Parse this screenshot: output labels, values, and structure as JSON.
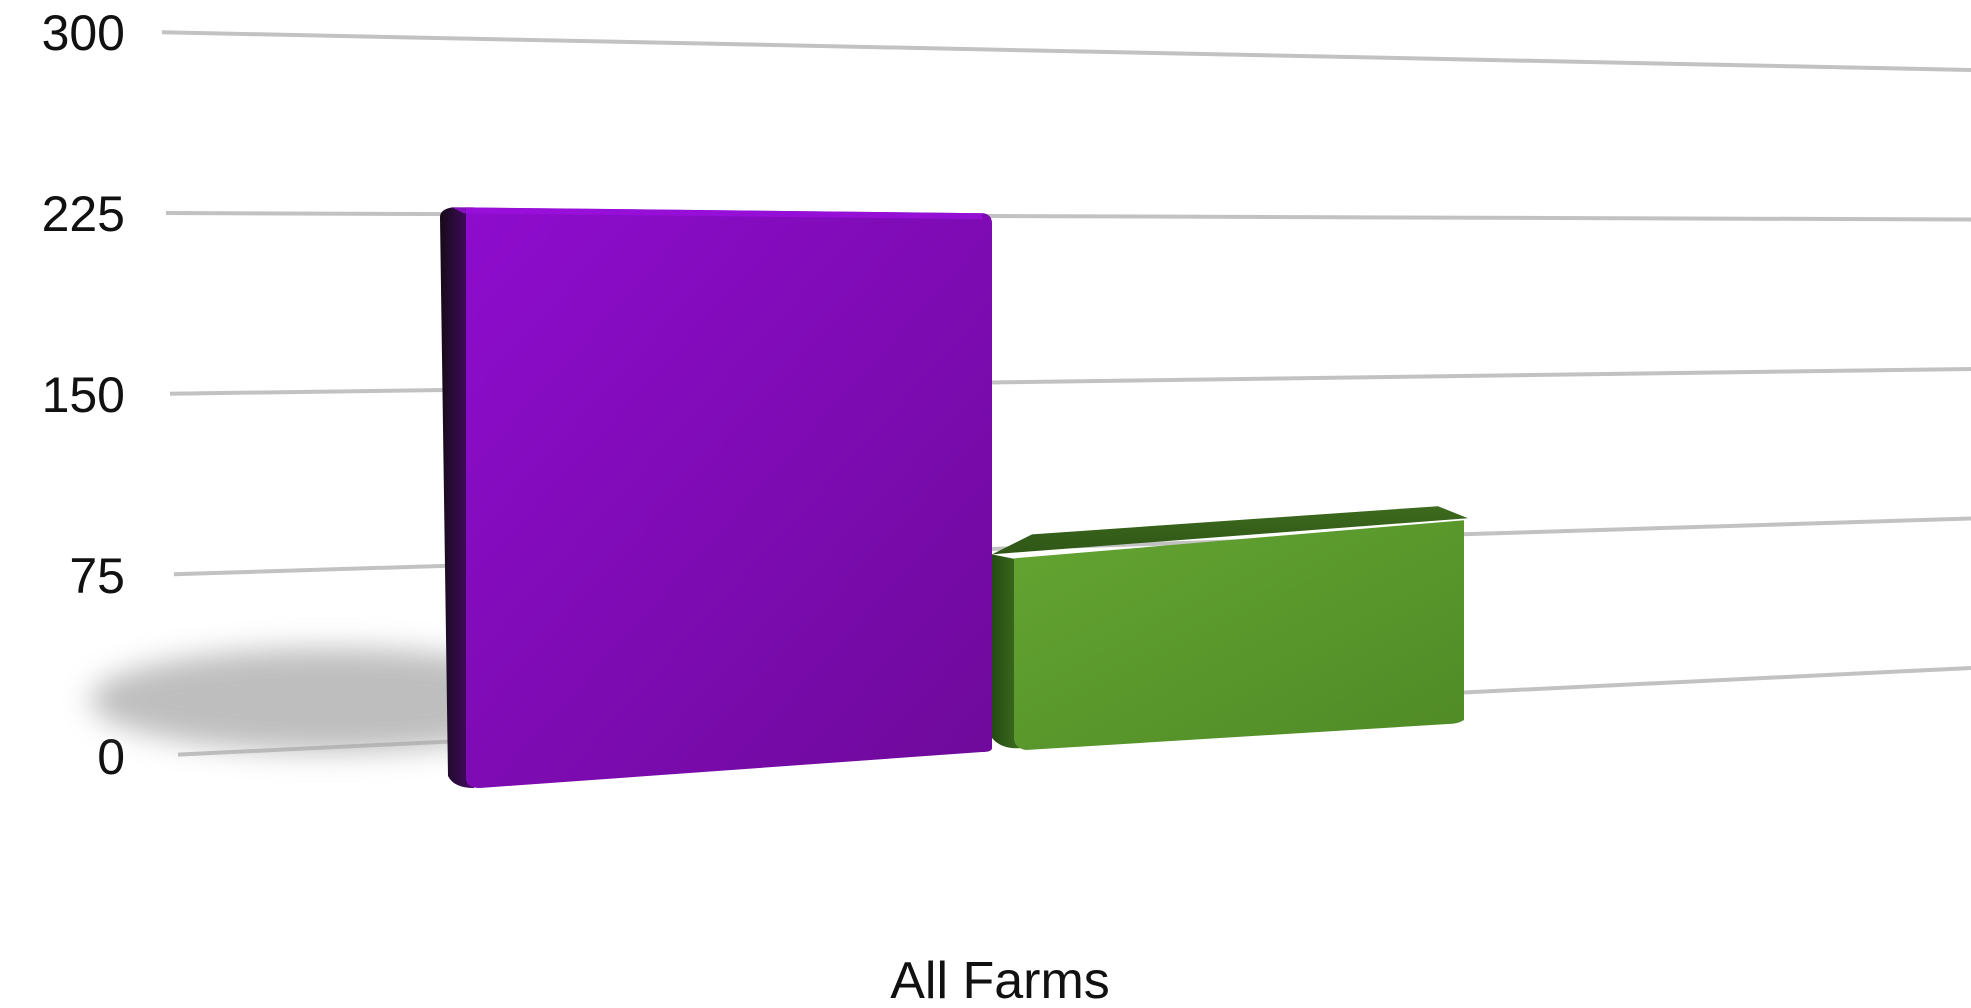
{
  "chart_data": {
    "type": "bar",
    "categories": [
      "All Farms"
    ],
    "series": [
      {
        "values": [
          250
        ],
        "color": "#8a0cc6"
      },
      {
        "values": [
          108
        ],
        "color": "#5a9a2c"
      }
    ],
    "yticks": [
      0,
      75,
      150,
      225,
      300
    ],
    "ylim": [
      0,
      300
    ],
    "grid": true,
    "style": "3d"
  }
}
